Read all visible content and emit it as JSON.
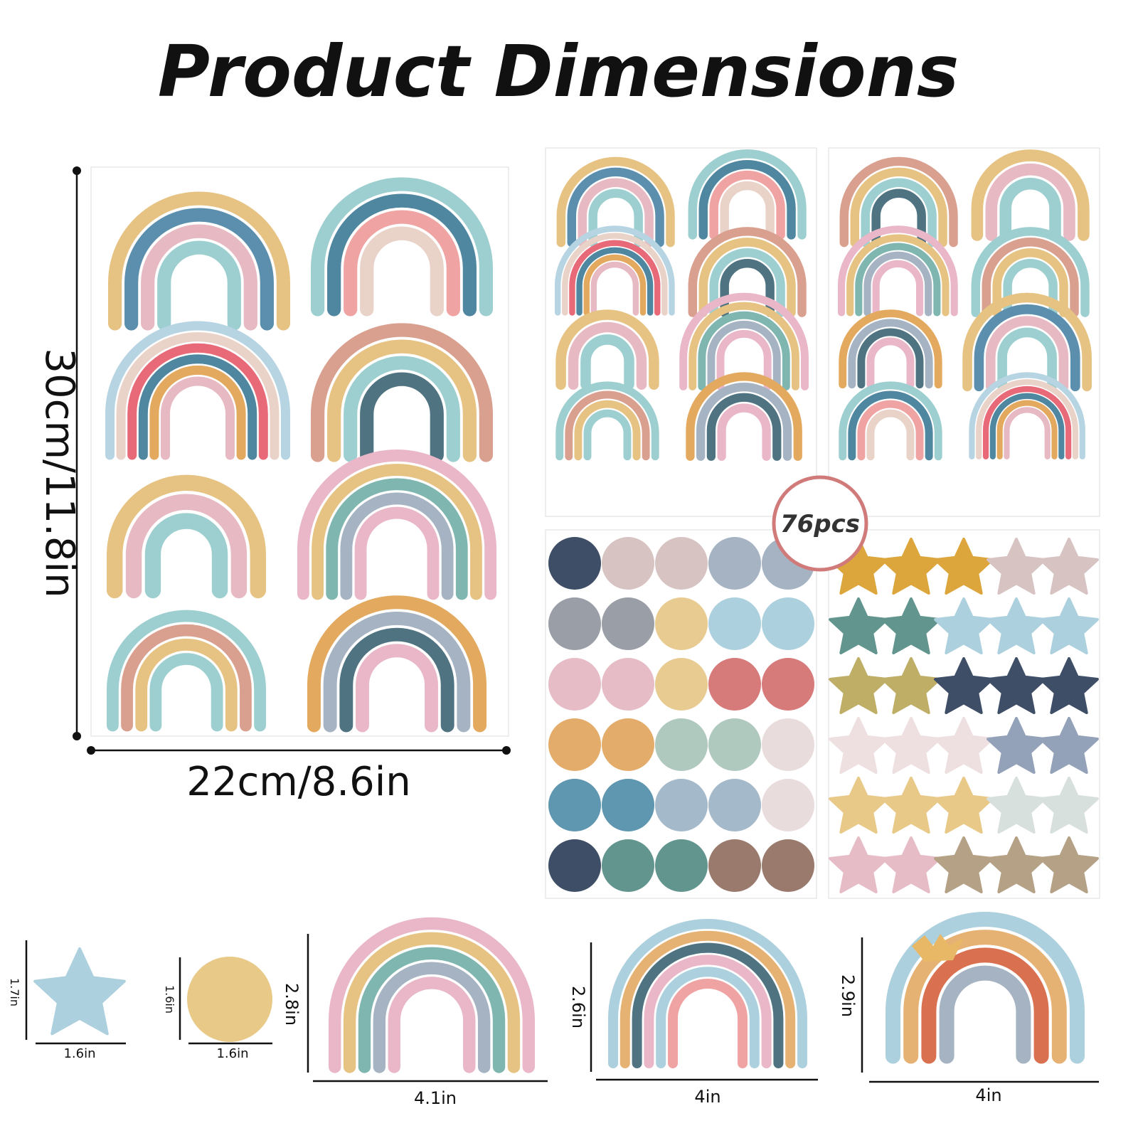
{
  "title": "Product Dimensions",
  "sheet": {
    "height": "30cm/11.8in",
    "width": "22cm/8.6in"
  },
  "badge": "76pcs",
  "items": [
    {
      "height": "1.7in",
      "width": "1.6in"
    },
    {
      "height": "1.6in",
      "width": "1.6in"
    },
    {
      "height": "2.8in",
      "width": "4.1in"
    },
    {
      "height": "2.6in",
      "width": "4in"
    },
    {
      "height": "2.9in",
      "width": "4in"
    }
  ]
}
